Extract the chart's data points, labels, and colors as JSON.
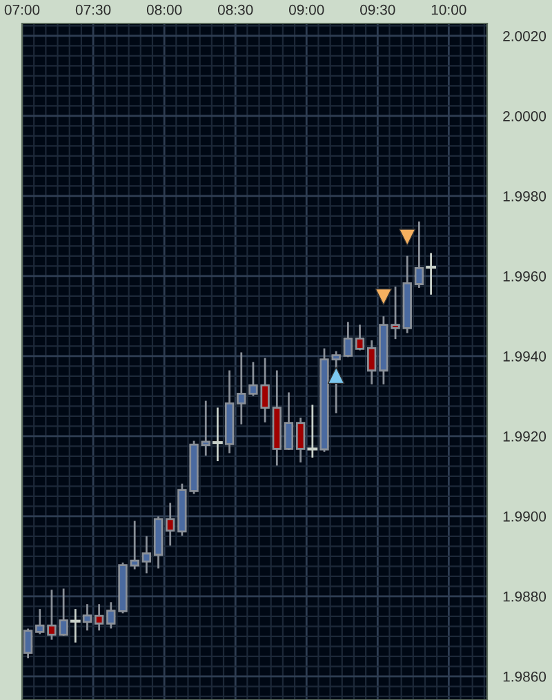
{
  "chart_data": {
    "type": "candlestick",
    "x": [
      7.0417,
      7.125,
      7.2083,
      7.2917,
      7.375,
      7.4583,
      7.5417,
      7.625,
      7.7083,
      7.7917,
      7.875,
      7.9583,
      8.0417,
      8.125,
      8.2083,
      8.2917,
      8.375,
      8.4583,
      8.5417,
      8.625,
      8.7083,
      8.7917,
      8.875,
      8.9583,
      9.0417,
      9.125,
      9.2083,
      9.2917,
      9.375,
      9.4583,
      9.5417,
      9.625,
      9.7083,
      9.7917,
      9.875
    ],
    "ohlc": [
      [
        1.98659,
        1.98717,
        1.98648,
        1.98714
      ],
      [
        1.98711,
        1.98766,
        1.98708,
        1.98727
      ],
      [
        1.98727,
        1.98814,
        1.98694,
        1.98704
      ],
      [
        1.98704,
        1.98817,
        1.98704,
        1.9874
      ],
      [
        1.98738,
        1.98766,
        1.98687,
        1.98738
      ],
      [
        1.98736,
        1.98778,
        1.98717,
        1.98752
      ],
      [
        1.98751,
        1.98778,
        1.98717,
        1.98732
      ],
      [
        1.98732,
        1.98783,
        1.98722,
        1.98764
      ],
      [
        1.98763,
        1.98882,
        1.9876,
        1.98878
      ],
      [
        1.98877,
        1.98986,
        1.9887,
        1.98889
      ],
      [
        1.98887,
        1.98948,
        1.9886,
        1.98907
      ],
      [
        1.98904,
        1.98997,
        1.98872,
        1.98993
      ],
      [
        1.98993,
        1.99031,
        1.98929,
        1.98964
      ],
      [
        1.98962,
        1.99079,
        1.98954,
        1.99066
      ],
      [
        1.99063,
        1.99186,
        1.99058,
        1.99179
      ],
      [
        1.99178,
        1.99286,
        1.99154,
        1.99186
      ],
      [
        1.99184,
        1.99269,
        1.9914,
        1.99184
      ],
      [
        1.9918,
        1.99362,
        1.9916,
        1.99282
      ],
      [
        1.99282,
        1.99407,
        1.99232,
        1.99306
      ],
      [
        1.99306,
        1.99383,
        1.99303,
        1.99327
      ],
      [
        1.99327,
        1.99393,
        1.99237,
        1.99271
      ],
      [
        1.99271,
        1.99362,
        1.99129,
        1.99168
      ],
      [
        1.99168,
        1.99307,
        1.99168,
        1.99233
      ],
      [
        1.99233,
        1.99244,
        1.99137,
        1.99168
      ],
      [
        1.99168,
        1.99276,
        1.99149,
        1.99168
      ],
      [
        1.99167,
        1.99417,
        1.99163,
        1.99392
      ],
      [
        1.99392,
        1.9941,
        1.9926,
        1.99402
      ],
      [
        1.99401,
        1.99483,
        1.994,
        1.99444
      ],
      [
        1.99444,
        1.99476,
        1.99417,
        1.99418
      ],
      [
        1.9942,
        1.99437,
        1.99332,
        1.99364
      ],
      [
        1.99364,
        1.99497,
        1.99332,
        1.99478
      ],
      [
        1.99478,
        1.99571,
        1.99445,
        1.9947
      ],
      [
        1.9947,
        1.99648,
        1.9946,
        1.99582
      ],
      [
        1.9958,
        1.99734,
        1.99573,
        1.9962
      ],
      [
        1.99622,
        1.99655,
        1.99556,
        1.99622
      ]
    ],
    "colors": [
      "#4a6aa0",
      "#4a6aa0",
      "#a00000",
      "#4a6aa0",
      "#c8d0c8",
      "#4a6aa0",
      "#a00000",
      "#4a6aa0",
      "#4a6aa0",
      "#4a6aa0",
      "#4a6aa0",
      "#4a6aa0",
      "#a00000",
      "#4a6aa0",
      "#4a6aa0",
      "#4a6aa0",
      "#c8d0c8",
      "#4a6aa0",
      "#4a6aa0",
      "#4a6aa0",
      "#a00000",
      "#a00000",
      "#4a6aa0",
      "#a00000",
      "#c8d0c8",
      "#4a6aa0",
      "#4a6aa0",
      "#4a6aa0",
      "#a00000",
      "#a00000",
      "#4a6aa0",
      "#a00000",
      "#4a6aa0",
      "#4a6aa0",
      "#c8d0c8"
    ],
    "series": [
      {
        "type": "scatter",
        "marker": "triangle",
        "color": "#7cc8f0",
        "x": [
          9.2083
        ],
        "values": [
          1.99352
        ]
      },
      {
        "type": "scatter",
        "marker": "triangle",
        "color": "#f5b060",
        "x": [
          9.5417,
          9.7083
        ],
        "values": [
          1.99548,
          1.99697
        ]
      }
    ],
    "xlim": [
      7.0,
      10.27
    ],
    "xticks": [
      {
        "value": 7,
        "label": "07:00"
      },
      {
        "value": 7.5,
        "label": "07:30"
      },
      {
        "value": 8,
        "label": "08:00"
      },
      {
        "value": 8.5,
        "label": "08:30"
      },
      {
        "value": 9,
        "label": "09:00"
      },
      {
        "value": 9.5,
        "label": "09:30"
      },
      {
        "value": 10,
        "label": "10:00"
      }
    ],
    "ylim": [
      1.98541,
      2.00231
    ],
    "yticks": [
      {
        "value": 1.986,
        "label": "1.9860"
      },
      {
        "value": 1.988,
        "label": "1.9880"
      },
      {
        "value": 1.99,
        "label": "1.9900"
      },
      {
        "value": 1.992,
        "label": "1.9920"
      },
      {
        "value": 1.994,
        "label": "1.9940"
      },
      {
        "value": 1.996,
        "label": "1.9960"
      },
      {
        "value": 1.998,
        "label": "1.9980"
      },
      {
        "value": 2.0,
        "label": "2.0000"
      },
      {
        "value": 2.002,
        "label": "2.0020"
      }
    ],
    "grid": true
  }
}
